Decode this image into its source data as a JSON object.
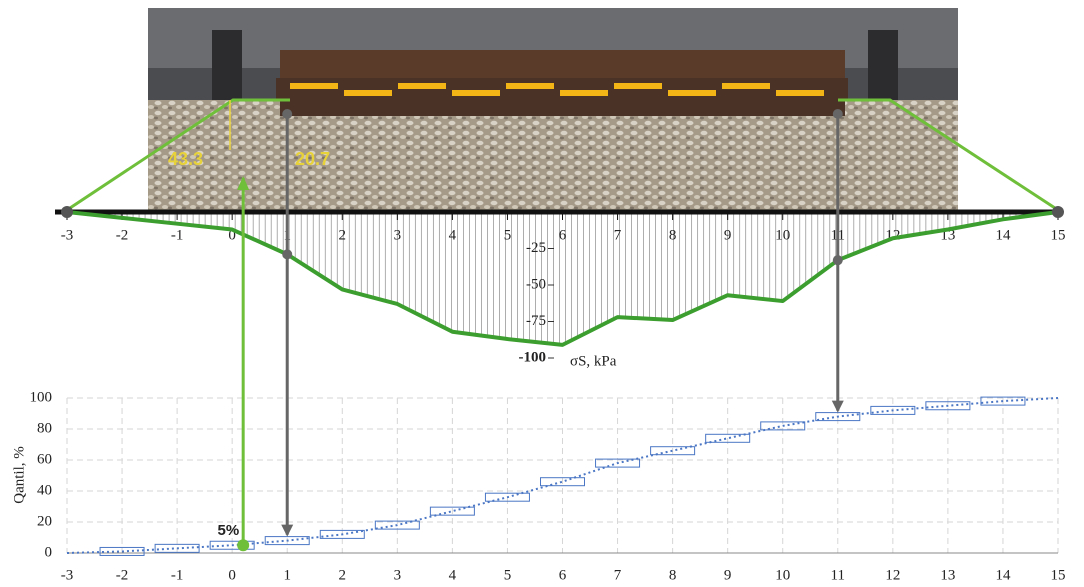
{
  "chart_data": [
    {
      "type": "area",
      "annotations": [
        "43.3",
        "20.7"
      ],
      "y_label": "σS, kPa",
      "x": [
        -3,
        -2,
        -1,
        0,
        1,
        2,
        3,
        4,
        5,
        6,
        7,
        8,
        9,
        10,
        11,
        12,
        13,
        14,
        15
      ],
      "values": [
        0,
        -4,
        -8,
        -12,
        -29,
        -53,
        -63,
        -82,
        -87,
        -91,
        -72,
        -74,
        -57,
        -61,
        -33,
        -18,
        -12,
        -5,
        0
      ],
      "color": "#3c9e2e",
      "xlim": [
        -3,
        15
      ],
      "ylim": [
        0,
        -100
      ],
      "xticks": [
        -3,
        -2,
        -1,
        0,
        1,
        2,
        3,
        4,
        5,
        6,
        7,
        8,
        9,
        10,
        11,
        12,
        13,
        14,
        15
      ],
      "yticks": [
        -25,
        -50,
        -75,
        -100
      ],
      "guides_x": [
        0.2,
        1,
        11
      ]
    },
    {
      "type": "step",
      "y_label": "Qantil, %",
      "box_x": [
        -2,
        -1,
        0,
        1,
        2,
        3,
        4,
        5,
        6,
        7,
        8,
        9,
        10,
        11,
        12,
        13,
        14
      ],
      "box_values": [
        1,
        3,
        5,
        8,
        12,
        18,
        27,
        36,
        46,
        58,
        66,
        74,
        82,
        88,
        92,
        95,
        98
      ],
      "x": [
        -3,
        -2,
        -1,
        0,
        1,
        2,
        3,
        4,
        5,
        6,
        7,
        8,
        9,
        10,
        11,
        12,
        13,
        14,
        15
      ],
      "values": [
        0,
        1,
        3,
        5,
        8,
        12,
        18,
        27,
        36,
        46,
        58,
        66,
        74,
        82,
        88,
        92,
        95,
        98,
        100
      ],
      "color": "#4a76c4",
      "xlim": [
        -3,
        15
      ],
      "ylim": [
        0,
        100
      ],
      "xticks": [
        -3,
        -2,
        -1,
        0,
        1,
        2,
        3,
        4,
        5,
        6,
        7,
        8,
        9,
        10,
        11,
        12,
        13,
        14,
        15
      ],
      "yticks": [
        0,
        20,
        40,
        60,
        80,
        100
      ],
      "grid": true,
      "annotation": {
        "text": "5%",
        "x": 0.2,
        "y": 5
      }
    }
  ]
}
